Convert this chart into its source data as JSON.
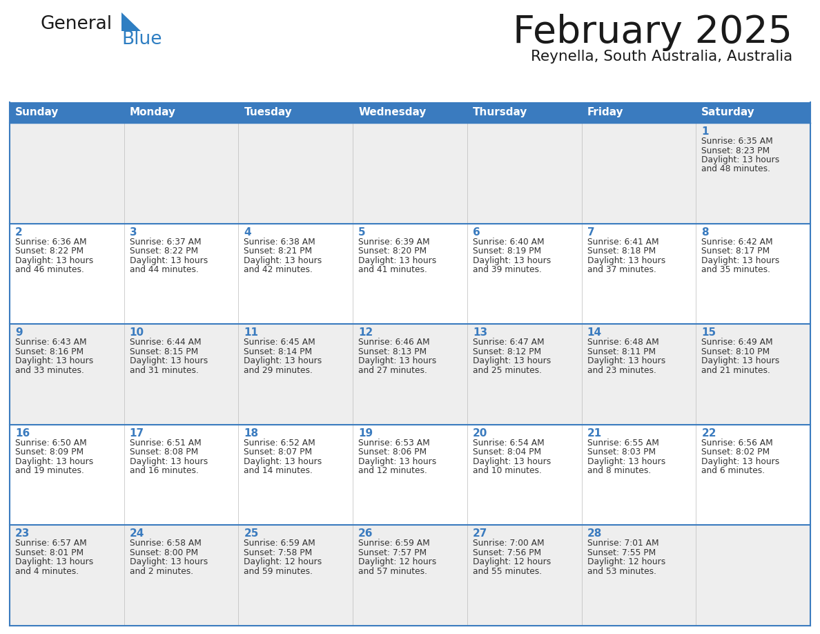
{
  "title": "February 2025",
  "subtitle": "Reynella, South Australia, Australia",
  "header_color": "#3a7bbf",
  "header_text_color": "#ffffff",
  "border_color": "#3a7bbf",
  "day_names": [
    "Sunday",
    "Monday",
    "Tuesday",
    "Wednesday",
    "Thursday",
    "Friday",
    "Saturday"
  ],
  "title_color": "#1a1a1a",
  "day_num_color": "#3a7bbf",
  "info_color": "#333333",
  "logo_general_color": "#1a1a1a",
  "logo_blue_color": "#2e7ec2",
  "row_bg_colors": [
    "#eeeeee",
    "#ffffff",
    "#eeeeee",
    "#ffffff",
    "#eeeeee"
  ],
  "calendar": [
    [
      null,
      null,
      null,
      null,
      null,
      null,
      {
        "day": 1,
        "sunrise": "6:35 AM",
        "sunset": "8:23 PM",
        "daylight": "13 hours and 48 minutes."
      }
    ],
    [
      {
        "day": 2,
        "sunrise": "6:36 AM",
        "sunset": "8:22 PM",
        "daylight": "13 hours and 46 minutes."
      },
      {
        "day": 3,
        "sunrise": "6:37 AM",
        "sunset": "8:22 PM",
        "daylight": "13 hours and 44 minutes."
      },
      {
        "day": 4,
        "sunrise": "6:38 AM",
        "sunset": "8:21 PM",
        "daylight": "13 hours and 42 minutes."
      },
      {
        "day": 5,
        "sunrise": "6:39 AM",
        "sunset": "8:20 PM",
        "daylight": "13 hours and 41 minutes."
      },
      {
        "day": 6,
        "sunrise": "6:40 AM",
        "sunset": "8:19 PM",
        "daylight": "13 hours and 39 minutes."
      },
      {
        "day": 7,
        "sunrise": "6:41 AM",
        "sunset": "8:18 PM",
        "daylight": "13 hours and 37 minutes."
      },
      {
        "day": 8,
        "sunrise": "6:42 AM",
        "sunset": "8:17 PM",
        "daylight": "13 hours and 35 minutes."
      }
    ],
    [
      {
        "day": 9,
        "sunrise": "6:43 AM",
        "sunset": "8:16 PM",
        "daylight": "13 hours and 33 minutes."
      },
      {
        "day": 10,
        "sunrise": "6:44 AM",
        "sunset": "8:15 PM",
        "daylight": "13 hours and 31 minutes."
      },
      {
        "day": 11,
        "sunrise": "6:45 AM",
        "sunset": "8:14 PM",
        "daylight": "13 hours and 29 minutes."
      },
      {
        "day": 12,
        "sunrise": "6:46 AM",
        "sunset": "8:13 PM",
        "daylight": "13 hours and 27 minutes."
      },
      {
        "day": 13,
        "sunrise": "6:47 AM",
        "sunset": "8:12 PM",
        "daylight": "13 hours and 25 minutes."
      },
      {
        "day": 14,
        "sunrise": "6:48 AM",
        "sunset": "8:11 PM",
        "daylight": "13 hours and 23 minutes."
      },
      {
        "day": 15,
        "sunrise": "6:49 AM",
        "sunset": "8:10 PM",
        "daylight": "13 hours and 21 minutes."
      }
    ],
    [
      {
        "day": 16,
        "sunrise": "6:50 AM",
        "sunset": "8:09 PM",
        "daylight": "13 hours and 19 minutes."
      },
      {
        "day": 17,
        "sunrise": "6:51 AM",
        "sunset": "8:08 PM",
        "daylight": "13 hours and 16 minutes."
      },
      {
        "day": 18,
        "sunrise": "6:52 AM",
        "sunset": "8:07 PM",
        "daylight": "13 hours and 14 minutes."
      },
      {
        "day": 19,
        "sunrise": "6:53 AM",
        "sunset": "8:06 PM",
        "daylight": "13 hours and 12 minutes."
      },
      {
        "day": 20,
        "sunrise": "6:54 AM",
        "sunset": "8:04 PM",
        "daylight": "13 hours and 10 minutes."
      },
      {
        "day": 21,
        "sunrise": "6:55 AM",
        "sunset": "8:03 PM",
        "daylight": "13 hours and 8 minutes."
      },
      {
        "day": 22,
        "sunrise": "6:56 AM",
        "sunset": "8:02 PM",
        "daylight": "13 hours and 6 minutes."
      }
    ],
    [
      {
        "day": 23,
        "sunrise": "6:57 AM",
        "sunset": "8:01 PM",
        "daylight": "13 hours and 4 minutes."
      },
      {
        "day": 24,
        "sunrise": "6:58 AM",
        "sunset": "8:00 PM",
        "daylight": "13 hours and 2 minutes."
      },
      {
        "day": 25,
        "sunrise": "6:59 AM",
        "sunset": "7:58 PM",
        "daylight": "12 hours and 59 minutes."
      },
      {
        "day": 26,
        "sunrise": "6:59 AM",
        "sunset": "7:57 PM",
        "daylight": "12 hours and 57 minutes."
      },
      {
        "day": 27,
        "sunrise": "7:00 AM",
        "sunset": "7:56 PM",
        "daylight": "12 hours and 55 minutes."
      },
      {
        "day": 28,
        "sunrise": "7:01 AM",
        "sunset": "7:55 PM",
        "daylight": "12 hours and 53 minutes."
      },
      null
    ]
  ]
}
